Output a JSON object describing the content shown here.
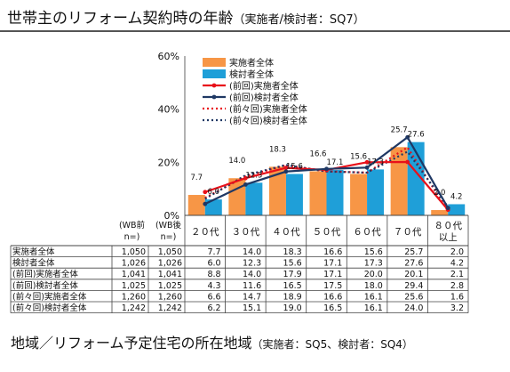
{
  "page": {
    "title": "世帯主のリフォーム契約時の年齢",
    "title_sub": "（実施者/検討者：SQ7）",
    "footer_title": "地域／リフォーム予定住宅の所在地域",
    "footer_sub": "（実施者：SQ5、検討者：SQ4）"
  },
  "colors": {
    "impl": "#f79646",
    "cons": "#1f9fd8",
    "prev_impl": "#e8101a",
    "prev_cons": "#1f3864",
    "prev2_impl": "#e8101a",
    "prev2_cons": "#1f3864"
  },
  "chart_data": {
    "type": "bar",
    "categories": [
      "２０代",
      "３０代",
      "４０代",
      "５０代",
      "６０代",
      "７０代",
      "８０代以上"
    ],
    "category_lines": [
      [
        "２０代"
      ],
      [
        "３０代"
      ],
      [
        "４０代"
      ],
      [
        "５０代"
      ],
      [
        "６０代"
      ],
      [
        "７０代"
      ],
      [
        "８０代",
        "以上"
      ]
    ],
    "ylim": [
      0,
      60
    ],
    "yticks": [
      "0%",
      "20%",
      "40%",
      "60%"
    ],
    "series": [
      {
        "name": "実施者全体",
        "kind": "bar",
        "values": [
          7.7,
          14.0,
          18.3,
          16.6,
          15.6,
          25.7,
          2.0
        ]
      },
      {
        "name": "検討者全体",
        "kind": "bar",
        "values": [
          6.0,
          12.3,
          15.6,
          17.1,
          17.3,
          27.6,
          4.2
        ]
      },
      {
        "name": "(前回)実施者全体",
        "kind": "line-solid-red",
        "values": [
          8.8,
          14.0,
          17.9,
          17.1,
          20.0,
          20.1,
          2.1
        ]
      },
      {
        "name": "(前回)検討者全体",
        "kind": "line-solid-navy",
        "values": [
          4.3,
          11.6,
          16.5,
          17.5,
          18.0,
          29.4,
          2.8
        ]
      },
      {
        "name": "(前々回)実施者全体",
        "kind": "line-dot-red",
        "values": [
          6.6,
          14.7,
          18.9,
          16.6,
          16.1,
          25.6,
          1.6
        ]
      },
      {
        "name": "(前々回)検討者全体",
        "kind": "line-dot-navy",
        "values": [
          6.2,
          15.1,
          19.0,
          16.5,
          16.1,
          24.0,
          3.2
        ]
      }
    ],
    "bar_labels": {
      "impl": [
        "7.7",
        "14.0",
        "18.3",
        "16.6",
        "15.6",
        "25.7",
        "2.0"
      ],
      "cons": [
        "6.0",
        "12.3",
        "15.6",
        "17.1",
        "17.3",
        "27.6",
        "4.2"
      ]
    },
    "table": {
      "n_headers": [
        [
          "(WB前",
          "n=)"
        ],
        [
          "(WB後",
          "n=)"
        ]
      ],
      "rows": [
        {
          "label": "実施者全体",
          "wb_before": "1,050",
          "wb_after": "1,050",
          "values": [
            "7.7",
            "14.0",
            "18.3",
            "16.6",
            "15.6",
            "25.7",
            "2.0"
          ]
        },
        {
          "label": "検討者全体",
          "wb_before": "1,026",
          "wb_after": "1,026",
          "values": [
            "6.0",
            "12.3",
            "15.6",
            "17.1",
            "17.3",
            "27.6",
            "4.2"
          ]
        },
        {
          "label": "(前回)実施者全体",
          "wb_before": "1,041",
          "wb_after": "1,041",
          "values": [
            "8.8",
            "14.0",
            "17.9",
            "17.1",
            "20.0",
            "20.1",
            "2.1"
          ]
        },
        {
          "label": "(前回)検討者全体",
          "wb_before": "1,025",
          "wb_after": "1,025",
          "values": [
            "4.3",
            "11.6",
            "16.5",
            "17.5",
            "18.0",
            "29.4",
            "2.8"
          ]
        },
        {
          "label": "(前々回)実施者全体",
          "wb_before": "1,260",
          "wb_after": "1,260",
          "values": [
            "6.6",
            "14.7",
            "18.9",
            "16.6",
            "16.1",
            "25.6",
            "1.6"
          ]
        },
        {
          "label": "(前々回)検討者全体",
          "wb_before": "1,242",
          "wb_after": "1,242",
          "values": [
            "6.2",
            "15.1",
            "19.0",
            "16.5",
            "16.1",
            "24.0",
            "3.2"
          ]
        }
      ]
    },
    "legend_position": "top-center",
    "grid": false
  }
}
